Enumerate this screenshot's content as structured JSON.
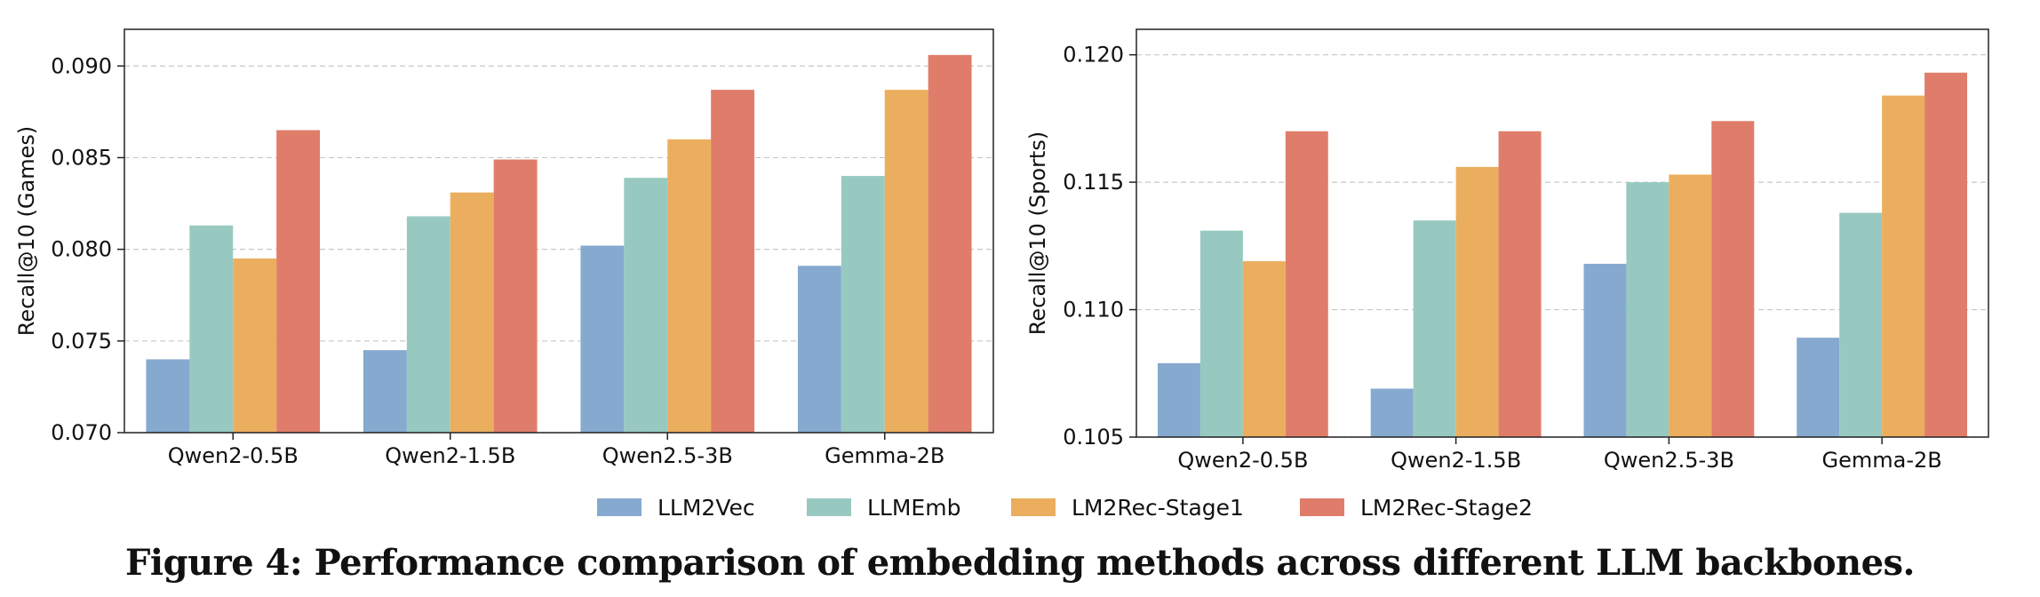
{
  "colors": {
    "LLM2Vec": "#86a9cf",
    "LLMEmb": "#98c9c1",
    "LM2Rec-Stage1": "#ebae5e",
    "LM2Rec-Stage2": "#e07d6a",
    "grid": "#c8c8c8",
    "axis": "#222222"
  },
  "legend": {
    "items": [
      "LLM2Vec",
      "LLMEmb",
      "LM2Rec-Stage1",
      "LM2Rec-Stage2"
    ]
  },
  "caption": "Figure 4: Performance comparison of embedding methods across different LLM backbones.",
  "chart_data": [
    {
      "type": "bar",
      "title": "",
      "xlabel": "",
      "ylabel": "Recall@10 (Games)",
      "categories": [
        "Qwen2-0.5B",
        "Qwen2-1.5B",
        "Qwen2.5-3B",
        "Gemma-2B"
      ],
      "ylim": [
        0.07,
        0.092
      ],
      "yticks": [
        "0.070",
        "0.075",
        "0.080",
        "0.085",
        "0.090"
      ],
      "grid": true,
      "series": [
        {
          "name": "LLM2Vec",
          "values": [
            0.074,
            0.0745,
            0.0802,
            0.0791
          ]
        },
        {
          "name": "LLMEmb",
          "values": [
            0.0813,
            0.0818,
            0.0839,
            0.084
          ]
        },
        {
          "name": "LM2Rec-Stage1",
          "values": [
            0.0795,
            0.0831,
            0.086,
            0.0887
          ]
        },
        {
          "name": "LM2Rec-Stage2",
          "values": [
            0.0865,
            0.0849,
            0.0887,
            0.0906
          ]
        }
      ]
    },
    {
      "type": "bar",
      "title": "",
      "xlabel": "",
      "ylabel": "Recall@10 (Sports)",
      "categories": [
        "Qwen2-0.5B",
        "Qwen2-1.5B",
        "Qwen2.5-3B",
        "Gemma-2B"
      ],
      "ylim": [
        0.105,
        0.121
      ],
      "yticks": [
        "0.105",
        "0.110",
        "0.115",
        "0.120"
      ],
      "grid": true,
      "series": [
        {
          "name": "LLM2Vec",
          "values": [
            0.1079,
            0.1069,
            0.1118,
            0.1089
          ]
        },
        {
          "name": "LLMEmb",
          "values": [
            0.1131,
            0.1135,
            0.115,
            0.1138
          ]
        },
        {
          "name": "LM2Rec-Stage1",
          "values": [
            0.1119,
            0.1156,
            0.1153,
            0.1184
          ]
        },
        {
          "name": "LM2Rec-Stage2",
          "values": [
            0.117,
            0.117,
            0.1174,
            0.1193
          ]
        }
      ]
    }
  ]
}
